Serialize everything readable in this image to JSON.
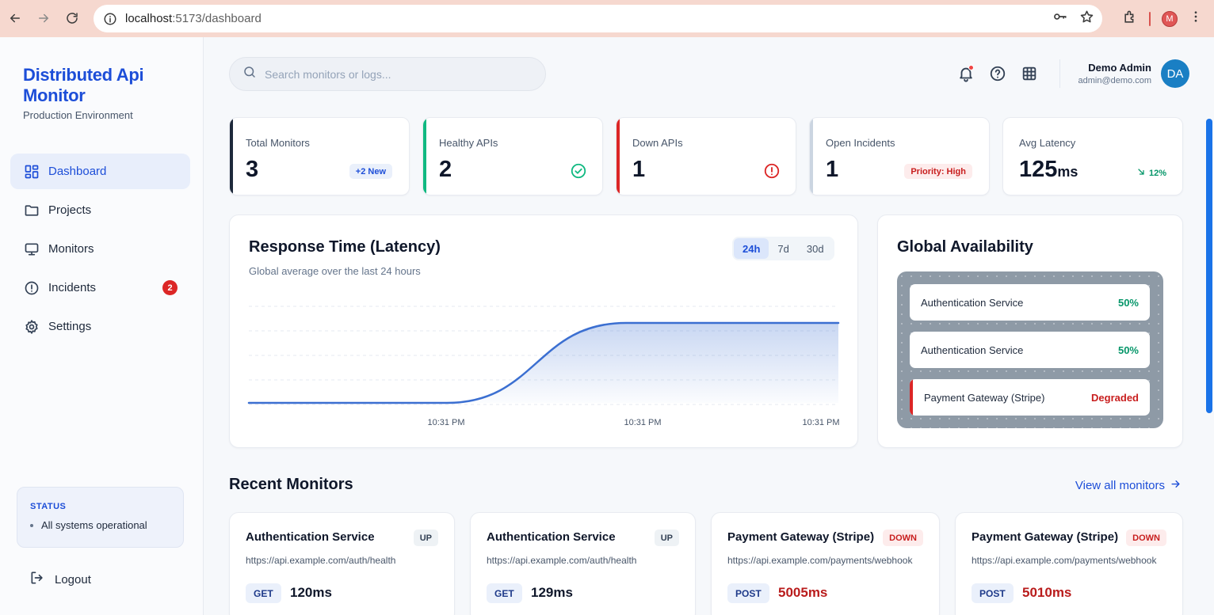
{
  "browser": {
    "url_host": "localhost",
    "url_path": ":5173/dashboard",
    "profile_initial": "M"
  },
  "sidebar": {
    "brand": "Distributed Api Monitor",
    "environment": "Production Environment",
    "items": [
      {
        "label": "Dashboard",
        "icon": "dashboard-icon",
        "active": true
      },
      {
        "label": "Projects",
        "icon": "folder-icon"
      },
      {
        "label": "Monitors",
        "icon": "monitor-icon"
      },
      {
        "label": "Incidents",
        "icon": "alert-circle-icon",
        "badge": "2"
      },
      {
        "label": "Settings",
        "icon": "gear-icon"
      }
    ],
    "status": {
      "title": "STATUS",
      "text": "All systems operational"
    },
    "logout": "Logout"
  },
  "header": {
    "search_placeholder": "Search monitors or logs...",
    "user_name": "Demo Admin",
    "user_email": "admin@demo.com",
    "avatar_initials": "DA"
  },
  "stats": [
    {
      "label": "Total Monitors",
      "value": "3",
      "tag": "+2 New",
      "accent": "#1e293b"
    },
    {
      "label": "Healthy APIs",
      "value": "2",
      "icon": "check-circle-icon",
      "accent": "#10b981"
    },
    {
      "label": "Down APIs",
      "value": "1",
      "icon": "alert-circle-icon",
      "accent": "#dc2626"
    },
    {
      "label": "Open Incidents",
      "value": "1",
      "tag": "Priority: High",
      "accent": "#cbd5e1"
    },
    {
      "label": "Avg Latency",
      "value": "125",
      "unit": "ms",
      "trend": "12%",
      "trend_icon": "arrow-down-right-icon"
    }
  ],
  "latency_chart": {
    "title": "Response Time (Latency)",
    "subtitle": "Global average over the last 24 hours",
    "ranges": [
      "24h",
      "7d",
      "30d"
    ],
    "active_range": "24h"
  },
  "chart_data": {
    "type": "area",
    "x": [
      "",
      "10:31 PM",
      "10:31 PM",
      "10:31 PM"
    ],
    "x_tick_labels": [
      "10:31 PM",
      "10:31 PM",
      "10:31 PM"
    ],
    "series": [
      {
        "values": [
          0,
          0,
          1,
          1
        ]
      }
    ],
    "grid": true,
    "color": "#3b6fd1"
  },
  "availability": {
    "title": "Global Availability",
    "rows": [
      {
        "name": "Authentication Service",
        "value": "50%"
      },
      {
        "name": "Authentication Service",
        "value": "50%"
      },
      {
        "name": "Payment Gateway (Stripe)",
        "value": "Degraded",
        "status": "down"
      }
    ]
  },
  "recent": {
    "title": "Recent Monitors",
    "view_all": "View all monitors",
    "monitors": [
      {
        "name": "Authentication Service",
        "status": "UP",
        "url": "https://api.example.com/auth/health",
        "method": "GET",
        "latency": "120ms"
      },
      {
        "name": "Authentication Service",
        "status": "UP",
        "url": "https://api.example.com/auth/health",
        "method": "GET",
        "latency": "129ms"
      },
      {
        "name": "Payment Gateway (Stripe)",
        "status": "DOWN",
        "url": "https://api.example.com/payments/webhook",
        "method": "POST",
        "latency": "5005ms"
      },
      {
        "name": "Payment Gateway (Stripe)",
        "status": "DOWN",
        "url": "https://api.example.com/payments/webhook",
        "method": "POST",
        "latency": "5010ms"
      }
    ]
  }
}
